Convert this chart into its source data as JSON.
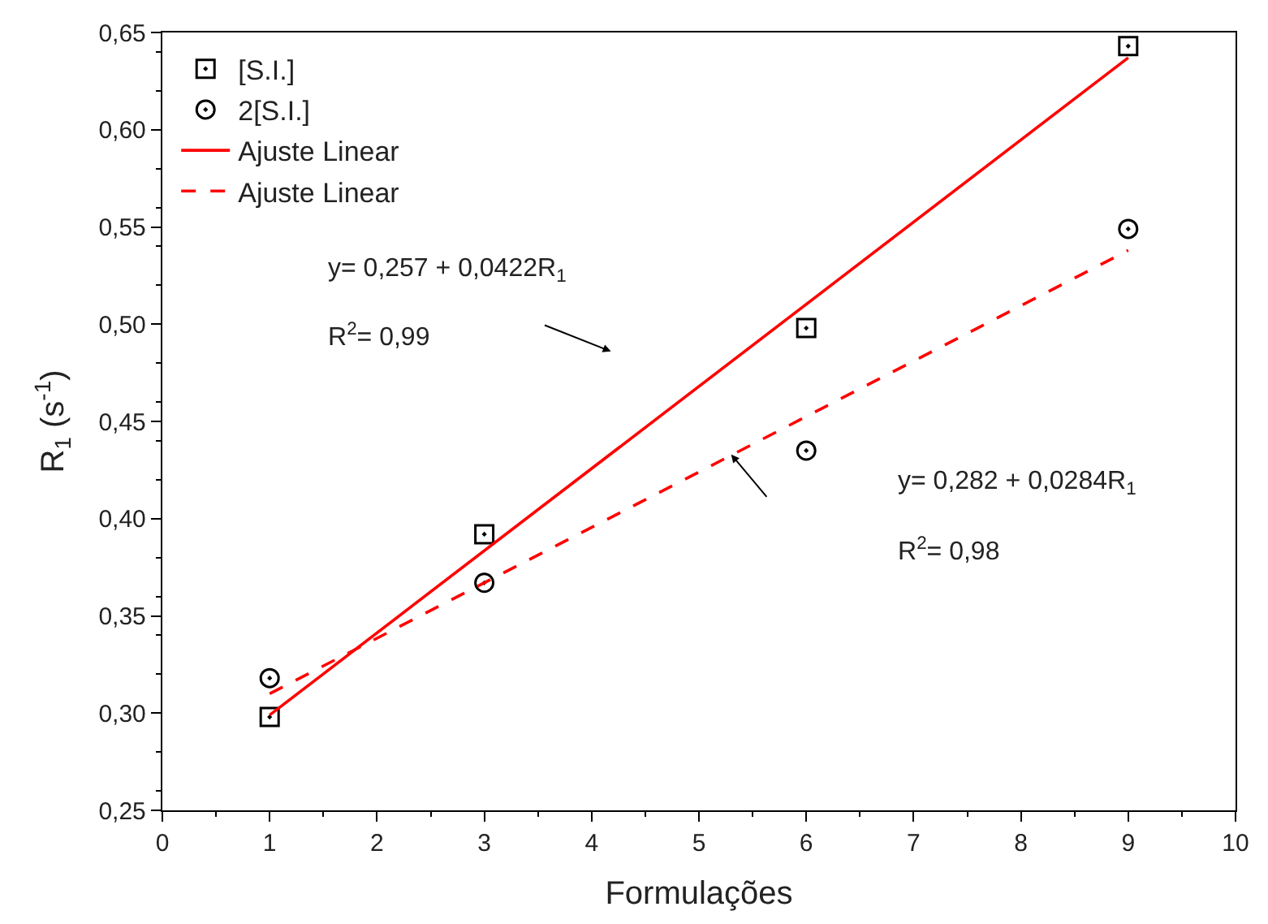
{
  "chart_data": {
    "type": "scatter",
    "xlabel": "Formulações",
    "ylabel": "R$_{1}$ (s$^{-1}$)",
    "xlim": [
      0,
      10
    ],
    "xticks": [
      0,
      1,
      2,
      3,
      4,
      5,
      6,
      7,
      8,
      9,
      10
    ],
    "ylim": [
      0.25,
      0.65
    ],
    "yticks": [
      {
        "value": 0.25,
        "label": "0,25"
      },
      {
        "value": 0.3,
        "label": "0,30"
      },
      {
        "value": 0.35,
        "label": "0,35"
      },
      {
        "value": 0.4,
        "label": "0,40"
      },
      {
        "value": 0.45,
        "label": "0,45"
      },
      {
        "value": 0.5,
        "label": "0,50"
      },
      {
        "value": 0.55,
        "label": "0,55"
      },
      {
        "value": 0.6,
        "label": "0,60"
      },
      {
        "value": 0.65,
        "label": "0,65"
      }
    ],
    "legend": "top left",
    "series": [
      {
        "name": "[S.I.]",
        "marker": "square",
        "color": "#000000",
        "x": [
          1,
          3,
          6,
          9
        ],
        "values": [
          0.298,
          0.392,
          0.498,
          0.643
        ]
      },
      {
        "name": "2[S.I.]",
        "marker": "circle",
        "color": "#000000",
        "x": [
          1,
          3,
          6,
          9
        ],
        "values": [
          0.318,
          0.367,
          0.435,
          0.549
        ]
      },
      {
        "name": "Ajuste Linear",
        "type": "line",
        "line_style": "solid",
        "color": "#ff0000",
        "x": [
          1,
          9
        ],
        "values": [
          0.299,
          0.637
        ]
      },
      {
        "name": "Ajuste Linear",
        "type": "line",
        "line_style": "dashed",
        "color": "#ff0000",
        "x": [
          1,
          9
        ],
        "values": [
          0.31,
          0.538
        ]
      }
    ],
    "annotations": [
      "y= 0,257 + 0,0422R$_{1}$",
      "R$^{2}$= 0,99",
      "y= 0,282 + 0,0284R$_{1}$",
      "R$^{2}$= 0,98"
    ]
  }
}
